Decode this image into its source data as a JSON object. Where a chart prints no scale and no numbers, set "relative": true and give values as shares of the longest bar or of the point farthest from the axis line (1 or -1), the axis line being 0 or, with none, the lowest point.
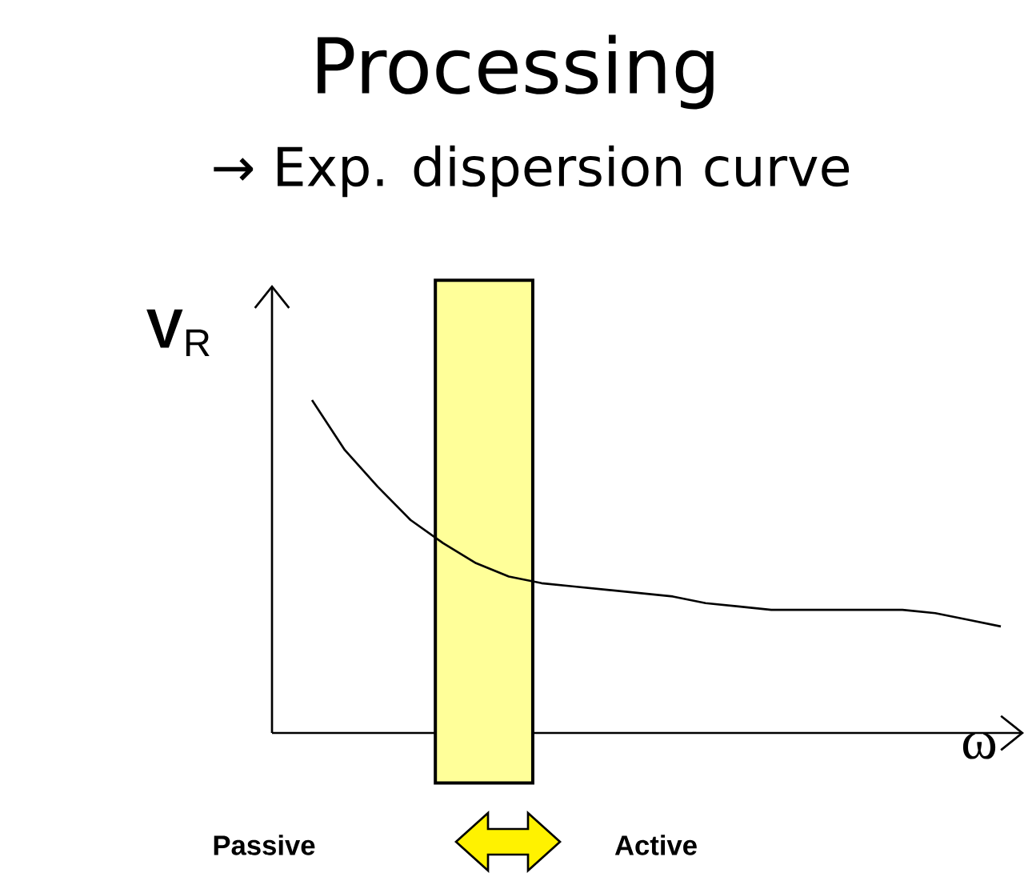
{
  "chart_data": {
    "type": "line",
    "title": "Processing",
    "subtitle": "→ Exp. dispersion curve",
    "ylabel": "**V**$_{R}$",
    "xlabel": "ω",
    "relative": true,
    "categories": [
      null,
      null,
      null,
      null,
      null,
      null,
      null,
      null,
      null,
      null,
      null,
      null,
      null,
      null,
      null,
      null,
      null,
      null,
      null,
      null,
      null,
      null
    ],
    "series": [
      {
        "color": "#000000",
        "values": [
          1,
          0.85,
          0.74,
          0.64,
          0.57,
          0.51,
          0.47,
          0.45,
          0.44,
          0.43,
          0.42,
          0.41,
          0.39,
          0.38,
          0.37,
          0.37,
          0.37,
          0.37,
          0.37,
          0.36,
          0.34,
          0.32
        ]
      }
    ],
    "annotations": [
      "Passive",
      "Active"
    ]
  }
}
